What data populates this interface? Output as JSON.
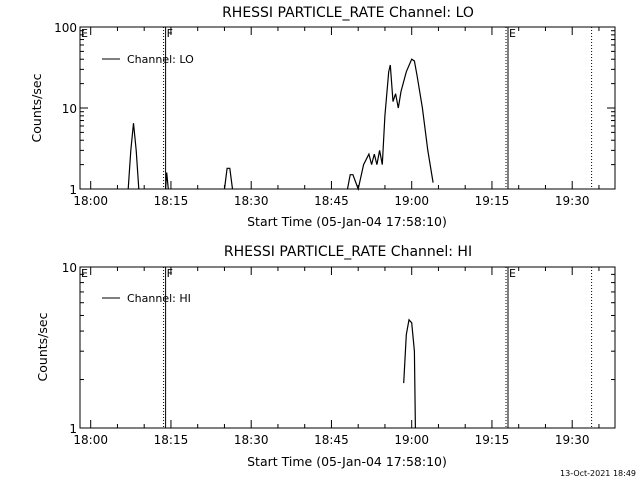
{
  "footer_date": "13-Oct-2021 18:49",
  "chart_data": [
    {
      "type": "line",
      "title": "RHESSI PARTICLE_RATE Channel: LO",
      "xlabel": "Start Time (05-Jan-04 17:58:10)",
      "ylabel": "Counts/sec",
      "yscale": "log",
      "ylim": [
        1,
        100
      ],
      "xlim_minutes_after_18_00": [
        -2,
        98
      ],
      "x_ticks": [
        "18:00",
        "18:15",
        "18:30",
        "18:45",
        "19:00",
        "19:15",
        "19:30"
      ],
      "y_ticks": [
        "1",
        "10",
        "100"
      ],
      "legend": {
        "label": "Channel: LO",
        "placement": "top-left"
      },
      "markers": [
        {
          "label": "E",
          "time": "17:58",
          "style": "solid"
        },
        {
          "label": "F",
          "time": "18:14",
          "style": "dotted-solid"
        },
        {
          "label": "E",
          "time": "19:18",
          "style": "dotted-solid"
        },
        {
          "label": "",
          "time": "19:34",
          "style": "dotted"
        }
      ],
      "series": [
        {
          "name": "Channel: LO",
          "segments": [
            [
              [
                "18:07",
                1
              ],
              [
                "18:07.5",
                3
              ],
              [
                "18:08",
                6.5
              ],
              [
                "18:08.5",
                3
              ],
              [
                "18:09",
                1
              ]
            ],
            [
              [
                "18:14",
                1
              ],
              [
                "18:14.2",
                1.6
              ],
              [
                "18:14.5",
                1
              ]
            ],
            [
              [
                "18:25",
                1
              ],
              [
                "18:25.5",
                1.8
              ],
              [
                "18:26",
                1.8
              ],
              [
                "18:26.5",
                1
              ]
            ],
            [
              [
                "18:48",
                1
              ],
              [
                "18:48.5",
                1.5
              ],
              [
                "18:49",
                1.5
              ],
              [
                "18:50",
                1
              ],
              [
                "18:51",
                2
              ],
              [
                "18:52",
                2.7
              ],
              [
                "18:52.5",
                2
              ],
              [
                "18:53",
                2.7
              ],
              [
                "18:53.5",
                2
              ],
              [
                "18:54",
                3
              ],
              [
                "18:54.5",
                2
              ],
              [
                "18:55",
                8
              ],
              [
                "18:55.7",
                28
              ],
              [
                "18:56",
                34
              ],
              [
                "18:56.5",
                12
              ],
              [
                "18:57",
                15
              ],
              [
                "18:57.5",
                10
              ],
              [
                "18:58",
                16
              ],
              [
                "18:59",
                28
              ],
              [
                "19:00",
                40
              ],
              [
                "19:00.5",
                38
              ],
              [
                "19:01",
                25
              ],
              [
                "19:02",
                10
              ],
              [
                "19:03",
                3
              ],
              [
                "19:04",
                1.2
              ]
            ]
          ]
        }
      ]
    },
    {
      "type": "line",
      "title": "RHESSI PARTICLE_RATE Channel: HI",
      "xlabel": "Start Time (05-Jan-04 17:58:10)",
      "ylabel": "Counts/sec",
      "yscale": "log",
      "ylim": [
        1,
        10
      ],
      "xlim_minutes_after_18_00": [
        -2,
        98
      ],
      "x_ticks": [
        "18:00",
        "18:15",
        "18:30",
        "18:45",
        "19:00",
        "19:15",
        "19:30"
      ],
      "y_ticks": [
        "1",
        "10"
      ],
      "legend": {
        "label": "Channel: HI",
        "placement": "top-left"
      },
      "markers": [
        {
          "label": "E",
          "time": "17:58",
          "style": "solid"
        },
        {
          "label": "F",
          "time": "18:14",
          "style": "dotted-solid"
        },
        {
          "label": "E",
          "time": "19:18",
          "style": "dotted-solid"
        },
        {
          "label": "",
          "time": "19:34",
          "style": "dotted"
        }
      ],
      "series": [
        {
          "name": "Channel: HI",
          "segments": [
            [
              [
                "18:58.5",
                1.9
              ],
              [
                "18:59",
                3.8
              ],
              [
                "18:59.5",
                4.7
              ],
              [
                "19:00",
                4.5
              ],
              [
                "19:00.5",
                3
              ],
              [
                "19:00.7",
                1
              ]
            ]
          ]
        }
      ]
    }
  ]
}
